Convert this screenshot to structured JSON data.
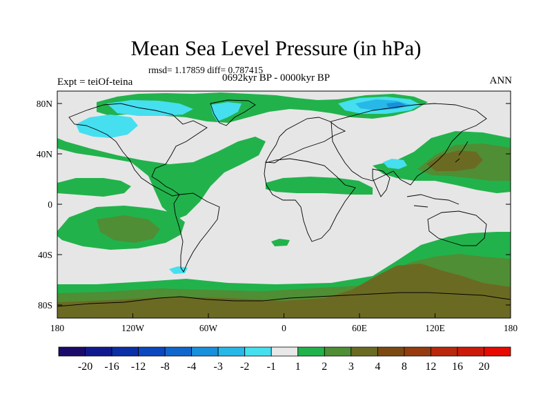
{
  "title": "Mean Sea Level Pressure (in hPa)",
  "stats": {
    "text": "rmsd= 1.17859 diff= 0.787415"
  },
  "period": "0692kyr BP - 0000kyr BP",
  "experiment": "Expt = teiOf-teina",
  "season": "ANN",
  "lat_labels": [
    "80N",
    "40N",
    "0",
    "40S",
    "80S"
  ],
  "lon_labels": [
    "180",
    "120W",
    "60W",
    "0",
    "60E",
    "120E",
    "180"
  ],
  "colorbar": {
    "labels": [
      "-20",
      "-16",
      "-12",
      "-8",
      "-4",
      "-3",
      "-2",
      "-1",
      "1",
      "2",
      "3",
      "4",
      "8",
      "12",
      "16",
      "20"
    ],
    "colors": [
      "#1c0a6b",
      "#101a8e",
      "#0b2fa6",
      "#0b47bf",
      "#1066cc",
      "#1890dc",
      "#27b8e8",
      "#45dff0",
      "#e8e8e8",
      "#22b24c",
      "#4f8e34",
      "#6b6a23",
      "#7a4a12",
      "#963a10",
      "#b8280c",
      "#cc1a08",
      "#e60a00"
    ]
  },
  "colors": {
    "land_outline": "#000000",
    "neutral": "#e6e6e6",
    "green": "#22b24c",
    "olive": "#4f8e34",
    "brown": "#6b6a23",
    "light_blue": "#45dff0",
    "sky": "#27b8e8",
    "mid_blue": "#1890dc"
  }
}
